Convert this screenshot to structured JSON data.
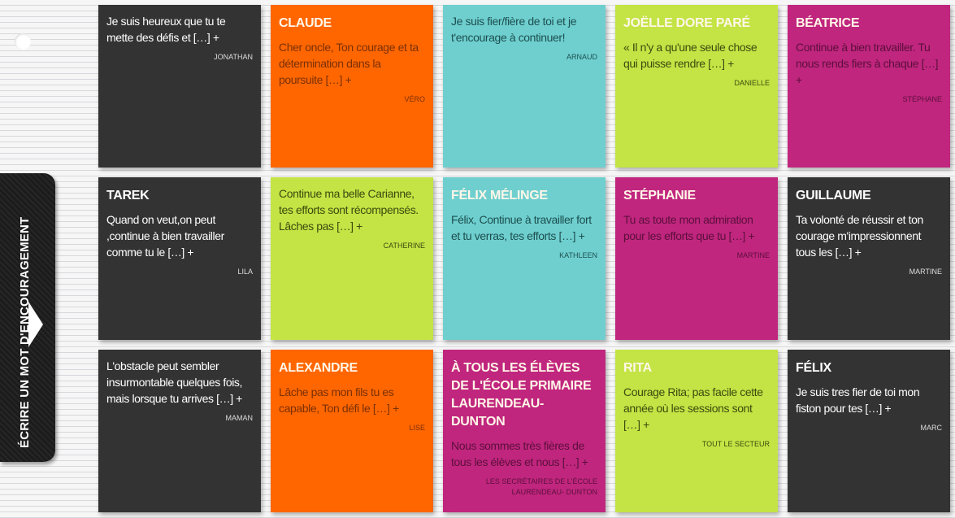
{
  "tab": {
    "label": "ÉCRIRE UN MOT D'ENCOURAGEMENT",
    "icon": "arrow-right-icon"
  },
  "colors": {
    "dark": "#333333",
    "orange": "#ff6600",
    "cyan": "#6fcfcf",
    "green": "#c3e444",
    "pink": "#c0267e"
  },
  "cards": [
    {
      "color": "dark",
      "title": "",
      "body": "Je suis heureux que tu te mette des défis et […] +",
      "author": "JONATHAN"
    },
    {
      "color": "orange",
      "title": "CLAUDE",
      "body": "Cher oncle, Ton courage et ta détermination dans la poursuite […] +",
      "author": "VÉRO"
    },
    {
      "color": "cyan",
      "title": "",
      "body": "Je suis fier/fière de toi et je t'encourage à continuer!",
      "author": "ARNAUD"
    },
    {
      "color": "green",
      "title": "JOËLLE DORE PARÉ",
      "body": "« Il n'y a qu'une seule chose qui puisse rendre […] +",
      "author": "DANIELLE"
    },
    {
      "color": "pink",
      "title": "BÉATRICE",
      "body": "Continue à bien travailler. Tu nous rends fiers à chaque […] +",
      "author": "STÉPHANE"
    },
    {
      "color": "dark",
      "title": "TAREK",
      "body": "Quand on veut,on peut ,continue à bien travailler comme tu le […] +",
      "author": "LILA"
    },
    {
      "color": "green",
      "title": "",
      "body": "Continue ma belle Carianne, tes efforts sont récompensés. Lâches pas […] +",
      "author": "CATHERINE"
    },
    {
      "color": "cyan",
      "title": "FÉLIX MÉLINGE",
      "body": "Félix, Continue à travailler fort et tu verras, tes efforts […] +",
      "author": "KATHLEEN"
    },
    {
      "color": "pink",
      "title": "STÉPHANIE",
      "body": "Tu as toute mon admiration pour les efforts que tu […] +",
      "author": "MARTINE"
    },
    {
      "color": "dark",
      "title": "GUILLAUME",
      "body": "Ta volonté de réussir et ton courage m'impressionnent tous les […] +",
      "author": "MARTINE"
    },
    {
      "color": "dark",
      "title": "",
      "body": "L'obstacle peut sembler insurmontable quelques fois, mais lorsque tu arrives […] +",
      "author": "MAMAN"
    },
    {
      "color": "orange",
      "title": "ALEXANDRE",
      "body": "Lâche pas mon fils tu es capable, Ton défi le […] +",
      "author": "LISE"
    },
    {
      "color": "pink",
      "title": "À TOUS LES ÉLÈVES DE L'ÉCOLE PRIMAIRE LAURENDEAU-DUNTON",
      "body": "Nous sommes très fières de tous les élèves et nous […] +",
      "author": "LES SECRÉTAIRES DE L'ÉCOLE LAURENDEAU- DUNTON"
    },
    {
      "color": "green",
      "title": "RITA",
      "body": "Courage Rita; pas facile cette année où les sessions sont […] +",
      "author": "TOUT LE SECTEUR"
    },
    {
      "color": "dark",
      "title": "FÉLIX",
      "body": "Je suis tres fier de toi mon fiston pour tes […] +",
      "author": "MARC"
    }
  ]
}
